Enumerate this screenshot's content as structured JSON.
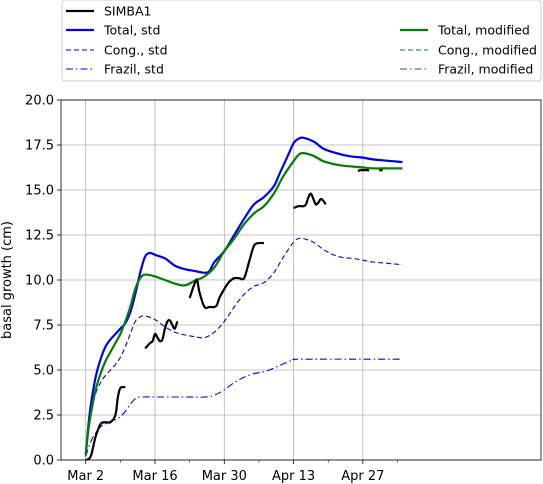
{
  "chart_data": {
    "type": "line",
    "title": "",
    "xlabel": "",
    "ylabel": "basal growth (cm)",
    "xlim": [
      -5,
      92
    ],
    "ylim": [
      0.0,
      20.0
    ],
    "grid": true,
    "legend_placement": "top (above plot)",
    "x_ticks": [
      {
        "day": 0,
        "label": "Mar 2"
      },
      {
        "day": 14,
        "label": "Mar 16"
      },
      {
        "day": 28,
        "label": "Mar 30"
      },
      {
        "day": 42,
        "label": "Apr 13"
      },
      {
        "day": 56,
        "label": "Apr 27"
      }
    ],
    "x_minor_ticks": [
      -7,
      7,
      21,
      35,
      49,
      63
    ],
    "y_ticks": [
      {
        "value": 0.0,
        "label": "0.0"
      },
      {
        "value": 2.5,
        "label": "2.5"
      },
      {
        "value": 5.0,
        "label": "5.0"
      },
      {
        "value": 7.5,
        "label": "7.5"
      },
      {
        "value": 10.0,
        "label": "10.0"
      },
      {
        "value": 12.5,
        "label": "12.5"
      },
      {
        "value": 15.0,
        "label": "15.0"
      },
      {
        "value": 17.5,
        "label": "17.5"
      },
      {
        "value": 20.0,
        "label": "20.0"
      }
    ],
    "series": [
      {
        "name": "Total, std",
        "color": "#0000ee",
        "width": 2.2,
        "dash": "",
        "points": [
          [
            0,
            0.3
          ],
          [
            0.5,
            1.8
          ],
          [
            1,
            3.0
          ],
          [
            2,
            4.6
          ],
          [
            3,
            5.6
          ],
          [
            4,
            6.3
          ],
          [
            5,
            6.7
          ],
          [
            6,
            7.0
          ],
          [
            7,
            7.3
          ],
          [
            8,
            7.6
          ],
          [
            9,
            8.2
          ],
          [
            10,
            9.2
          ],
          [
            11,
            10.4
          ],
          [
            12,
            11.3
          ],
          [
            13,
            11.5
          ],
          [
            14,
            11.4
          ],
          [
            16,
            11.2
          ],
          [
            18,
            10.8
          ],
          [
            20,
            10.6
          ],
          [
            22,
            10.5
          ],
          [
            24,
            10.4
          ],
          [
            25,
            10.5
          ],
          [
            26,
            11.0
          ],
          [
            28,
            11.6
          ],
          [
            30,
            12.5
          ],
          [
            32,
            13.4
          ],
          [
            34,
            14.2
          ],
          [
            36,
            14.6
          ],
          [
            38,
            15.2
          ],
          [
            39,
            15.8
          ],
          [
            40,
            16.4
          ],
          [
            41,
            17.0
          ],
          [
            42,
            17.6
          ],
          [
            43,
            17.85
          ],
          [
            44,
            17.9
          ],
          [
            46,
            17.7
          ],
          [
            48,
            17.3
          ],
          [
            50,
            17.1
          ],
          [
            52,
            16.95
          ],
          [
            54,
            16.85
          ],
          [
            56,
            16.8
          ],
          [
            58,
            16.7
          ],
          [
            60,
            16.65
          ],
          [
            62,
            16.6
          ],
          [
            64,
            16.55
          ]
        ]
      },
      {
        "name": "Cong., std",
        "color": "#0000ee",
        "width": 1.1,
        "dash": "5,3",
        "points": [
          [
            0,
            0.2
          ],
          [
            1,
            2.8
          ],
          [
            2,
            3.7
          ],
          [
            3,
            4.3
          ],
          [
            4,
            4.7
          ],
          [
            5,
            5.0
          ],
          [
            6,
            5.3
          ],
          [
            7,
            5.7
          ],
          [
            8,
            6.3
          ],
          [
            9,
            7.0
          ],
          [
            10,
            7.7
          ],
          [
            11,
            7.95
          ],
          [
            12,
            8.0
          ],
          [
            14,
            7.8
          ],
          [
            16,
            7.4
          ],
          [
            18,
            7.1
          ],
          [
            20,
            6.95
          ],
          [
            22,
            6.85
          ],
          [
            24,
            6.8
          ],
          [
            26,
            7.1
          ],
          [
            28,
            7.7
          ],
          [
            30,
            8.5
          ],
          [
            32,
            9.2
          ],
          [
            34,
            9.65
          ],
          [
            36,
            9.85
          ],
          [
            38,
            10.4
          ],
          [
            40,
            11.3
          ],
          [
            42,
            12.1
          ],
          [
            43,
            12.3
          ],
          [
            44,
            12.3
          ],
          [
            46,
            12.1
          ],
          [
            48,
            11.7
          ],
          [
            50,
            11.4
          ],
          [
            52,
            11.25
          ],
          [
            54,
            11.2
          ],
          [
            56,
            11.1
          ],
          [
            58,
            11.0
          ],
          [
            60,
            10.95
          ],
          [
            62,
            10.9
          ],
          [
            64,
            10.85
          ]
        ]
      },
      {
        "name": "Frazil, std",
        "color": "#0000ee",
        "width": 1.1,
        "dash": "7,3,1.5,3",
        "points": [
          [
            0,
            0.2
          ],
          [
            1,
            1.0
          ],
          [
            2,
            1.5
          ],
          [
            3,
            1.85
          ],
          [
            4,
            2.0
          ],
          [
            5,
            2.15
          ],
          [
            6,
            2.25
          ],
          [
            7,
            2.4
          ],
          [
            8,
            2.7
          ],
          [
            9,
            3.1
          ],
          [
            10,
            3.4
          ],
          [
            11,
            3.5
          ],
          [
            14,
            3.5
          ],
          [
            20,
            3.5
          ],
          [
            24,
            3.5
          ],
          [
            26,
            3.6
          ],
          [
            28,
            3.9
          ],
          [
            30,
            4.3
          ],
          [
            32,
            4.6
          ],
          [
            34,
            4.8
          ],
          [
            36,
            4.9
          ],
          [
            38,
            5.1
          ],
          [
            40,
            5.35
          ],
          [
            42,
            5.55
          ],
          [
            44,
            5.6
          ],
          [
            64,
            5.6
          ]
        ]
      },
      {
        "name": "Total, modified",
        "color": "#008000",
        "width": 2.2,
        "dash": "",
        "points": [
          [
            0,
            0.3
          ],
          [
            0.5,
            1.6
          ],
          [
            1,
            2.5
          ],
          [
            2,
            3.9
          ],
          [
            3,
            4.8
          ],
          [
            4,
            5.5
          ],
          [
            5,
            6.0
          ],
          [
            6,
            6.5
          ],
          [
            7,
            7.0
          ],
          [
            8,
            7.7
          ],
          [
            9,
            8.5
          ],
          [
            10,
            9.5
          ],
          [
            11,
            10.1
          ],
          [
            12,
            10.3
          ],
          [
            14,
            10.2
          ],
          [
            16,
            10.0
          ],
          [
            18,
            9.8
          ],
          [
            20,
            9.7
          ],
          [
            22,
            9.95
          ],
          [
            24,
            10.2
          ],
          [
            26,
            10.7
          ],
          [
            28,
            11.6
          ],
          [
            30,
            12.3
          ],
          [
            32,
            13.1
          ],
          [
            34,
            13.7
          ],
          [
            36,
            14.1
          ],
          [
            38,
            14.8
          ],
          [
            40,
            15.8
          ],
          [
            42,
            16.6
          ],
          [
            43,
            16.95
          ],
          [
            44,
            17.05
          ],
          [
            46,
            16.9
          ],
          [
            48,
            16.6
          ],
          [
            50,
            16.45
          ],
          [
            52,
            16.35
          ],
          [
            54,
            16.3
          ],
          [
            56,
            16.25
          ],
          [
            58,
            16.2
          ],
          [
            60,
            16.2
          ],
          [
            62,
            16.2
          ],
          [
            64,
            16.2
          ]
        ]
      },
      {
        "name": "SIMBA1",
        "color": "#000000",
        "width": 2.2,
        "dash": "",
        "segments": [
          [
            [
              0,
              0
            ],
            [
              1,
              0.2
            ],
            [
              2,
              1.3
            ],
            [
              3,
              2.0
            ],
            [
              4,
              2.1
            ],
            [
              5,
              2.1
            ],
            [
              6,
              2.5
            ],
            [
              6.5,
              3.5
            ],
            [
              7,
              4.0
            ],
            [
              8,
              4.05
            ]
          ],
          [
            [
              12,
              6.2
            ],
            [
              12.5,
              6.35
            ],
            [
              13,
              6.5
            ],
            [
              13.5,
              6.6
            ],
            [
              14,
              7.0
            ],
            [
              14.5,
              6.8
            ],
            [
              15,
              6.6
            ],
            [
              15.5,
              6.7
            ],
            [
              16,
              7.3
            ],
            [
              16.5,
              7.7
            ],
            [
              17,
              7.75
            ],
            [
              17.5,
              7.5
            ],
            [
              18,
              7.3
            ],
            [
              18.5,
              7.7
            ]
          ],
          [
            [
              21,
              9.0
            ],
            [
              22,
              9.8
            ],
            [
              22.5,
              10.0
            ],
            [
              23,
              9.3
            ],
            [
              24,
              8.5
            ],
            [
              25,
              8.5
            ],
            [
              26,
              8.5
            ],
            [
              26.5,
              8.6
            ],
            [
              27,
              9.0
            ],
            [
              28,
              9.5
            ],
            [
              29,
              9.9
            ],
            [
              30,
              10.1
            ],
            [
              31,
              10.1
            ],
            [
              32,
              10.1
            ],
            [
              33,
              11.0
            ],
            [
              34,
              11.9
            ],
            [
              35,
              12.05
            ],
            [
              36,
              12.05
            ]
          ],
          [
            [
              42,
              14.0
            ],
            [
              43,
              14.1
            ],
            [
              44,
              14.1
            ],
            [
              44.5,
              14.2
            ],
            [
              45,
              14.6
            ],
            [
              45.5,
              14.8
            ],
            [
              46,
              14.5
            ],
            [
              46.5,
              14.2
            ],
            [
              47,
              14.3
            ],
            [
              47.5,
              14.5
            ],
            [
              48,
              14.4
            ],
            [
              48.5,
              14.2
            ]
          ],
          [
            [
              55,
              16.05
            ],
            [
              55.5,
              16.1
            ],
            [
              56.5,
              16.1
            ],
            [
              57,
              16.1
            ],
            [
              57.2,
              16.05
            ]
          ],
          [
            [
              59.3,
              16.1
            ],
            [
              60,
              16.1
            ]
          ]
        ]
      }
    ],
    "legend": {
      "left": [
        {
          "label": "SIMBA1",
          "color": "#000000",
          "dash": "",
          "width": 2.2
        },
        {
          "label": "Total, std",
          "color": "#0000ee",
          "dash": "",
          "width": 2.2
        },
        {
          "label": "Cong., std",
          "color": "#0000ee",
          "dash": "5,3",
          "width": 1.1
        },
        {
          "label": "Frazil, std",
          "color": "#0000ee",
          "dash": "7,3,1.5,3",
          "width": 1.1
        }
      ],
      "right": [
        {
          "label": "Total, modified",
          "color": "#008000",
          "dash": "",
          "width": 2.2
        },
        {
          "label": "Cong., modified",
          "color": "#008000",
          "dash": "5,3",
          "width": 1.1
        },
        {
          "label": "Frazil,  modified",
          "color": "#008000",
          "dash": "7,3,1.5,3",
          "width": 1.1
        }
      ]
    }
  }
}
